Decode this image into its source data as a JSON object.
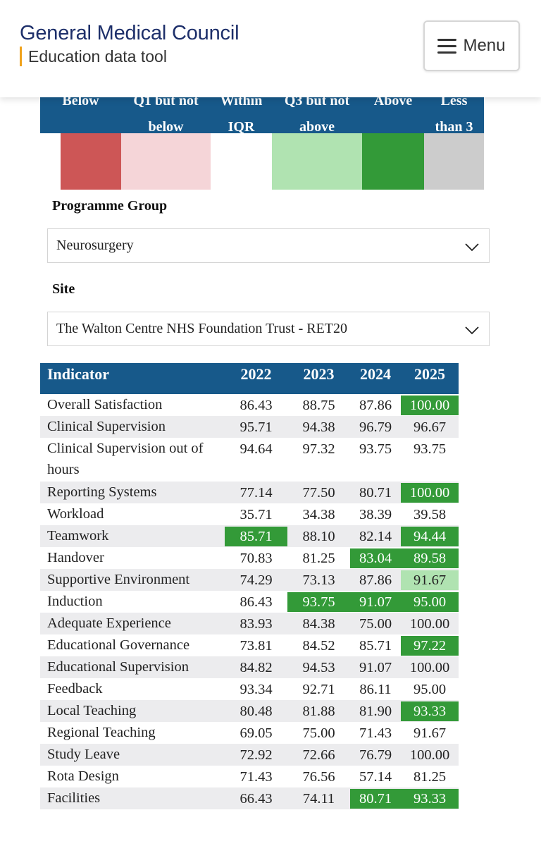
{
  "header": {
    "title": "General Medical Council",
    "subtitle": "Education data tool",
    "menu_label": "Menu"
  },
  "legend": {
    "labels": [
      {
        "top": "Below",
        "bottom": ""
      },
      {
        "top": "Q1 but not",
        "bottom": "below"
      },
      {
        "top": "Within",
        "bottom": "IQR"
      },
      {
        "top": "Q3 but not",
        "bottom": "above"
      },
      {
        "top": "Above",
        "bottom": ""
      },
      {
        "top": "Less",
        "bottom": "than 3"
      }
    ],
    "colors": [
      "#cd5656",
      "#f5d5d8",
      "#ffffff",
      "#b0e3b1",
      "#339a38",
      "#cccccc"
    ]
  },
  "filters": {
    "programme_group": {
      "label": "Programme Group",
      "value": "Neurosurgery"
    },
    "site": {
      "label": "Site",
      "value": "The Walton Centre NHS Foundation Trust - RET20"
    }
  },
  "table": {
    "headers": [
      "Indicator",
      "2022",
      "2023",
      "2024",
      "2025"
    ],
    "rows": [
      {
        "name": "Overall Satisfaction",
        "values": [
          "86.43",
          "88.75",
          "87.86",
          "100.00"
        ],
        "status": [
          "",
          "",
          "",
          "above"
        ]
      },
      {
        "name": "Clinical Supervision",
        "values": [
          "95.71",
          "94.38",
          "96.79",
          "96.67"
        ],
        "status": [
          "",
          "",
          "",
          ""
        ]
      },
      {
        "name": "Clinical Supervision out of hours",
        "values": [
          "94.64",
          "97.32",
          "93.75",
          "93.75"
        ],
        "status": [
          "",
          "",
          "",
          ""
        ]
      },
      {
        "name": "Reporting Systems",
        "values": [
          "77.14",
          "77.50",
          "80.71",
          "100.00"
        ],
        "status": [
          "",
          "",
          "",
          "above"
        ]
      },
      {
        "name": "Workload",
        "values": [
          "35.71",
          "34.38",
          "38.39",
          "39.58"
        ],
        "status": [
          "",
          "",
          "",
          ""
        ]
      },
      {
        "name": "Teamwork",
        "values": [
          "85.71",
          "88.10",
          "82.14",
          "94.44"
        ],
        "status": [
          "above",
          "",
          "",
          "above"
        ]
      },
      {
        "name": "Handover",
        "values": [
          "70.83",
          "81.25",
          "83.04",
          "89.58"
        ],
        "status": [
          "",
          "",
          "above",
          "above"
        ]
      },
      {
        "name": "Supportive Environment",
        "values": [
          "74.29",
          "73.13",
          "87.86",
          "91.67"
        ],
        "status": [
          "",
          "",
          "",
          "q3"
        ]
      },
      {
        "name": "Induction",
        "values": [
          "86.43",
          "93.75",
          "91.07",
          "95.00"
        ],
        "status": [
          "",
          "above",
          "above",
          "above"
        ]
      },
      {
        "name": "Adequate Experience",
        "values": [
          "83.93",
          "84.38",
          "75.00",
          "100.00"
        ],
        "status": [
          "",
          "",
          "",
          ""
        ]
      },
      {
        "name": "Educational Governance",
        "values": [
          "73.81",
          "84.52",
          "85.71",
          "97.22"
        ],
        "status": [
          "",
          "",
          "",
          "above"
        ]
      },
      {
        "name": "Educational Supervision",
        "values": [
          "84.82",
          "94.53",
          "91.07",
          "100.00"
        ],
        "status": [
          "",
          "",
          "",
          ""
        ]
      },
      {
        "name": "Feedback",
        "values": [
          "93.34",
          "92.71",
          "86.11",
          "95.00"
        ],
        "status": [
          "",
          "",
          "",
          ""
        ]
      },
      {
        "name": "Local Teaching",
        "values": [
          "80.48",
          "81.88",
          "81.90",
          "93.33"
        ],
        "status": [
          "",
          "",
          "",
          "above"
        ]
      },
      {
        "name": "Regional Teaching",
        "values": [
          "69.05",
          "75.00",
          "71.43",
          "91.67"
        ],
        "status": [
          "",
          "",
          "",
          ""
        ]
      },
      {
        "name": "Study Leave",
        "values": [
          "72.92",
          "72.66",
          "76.79",
          "100.00"
        ],
        "status": [
          "",
          "",
          "",
          ""
        ]
      },
      {
        "name": "Rota Design",
        "values": [
          "71.43",
          "76.56",
          "57.14",
          "81.25"
        ],
        "status": [
          "",
          "",
          "",
          ""
        ]
      },
      {
        "name": "Facilities",
        "values": [
          "66.43",
          "74.11",
          "80.71",
          "93.33"
        ],
        "status": [
          "",
          "",
          "above",
          "above"
        ]
      }
    ]
  }
}
